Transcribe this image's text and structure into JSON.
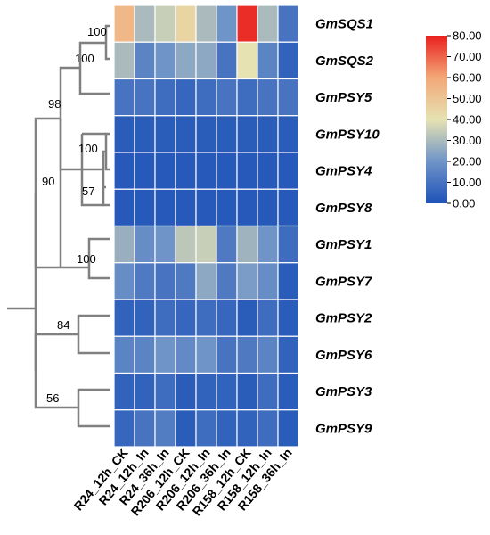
{
  "chart_data": {
    "type": "heatmap",
    "title": "",
    "rows": [
      "GmSQS1",
      "GmSQS2",
      "GmPSY5",
      "GmPSY10",
      "GmPSY4",
      "GmPSY8",
      "GmPSY1",
      "GmPSY7",
      "GmPSY2",
      "GmPSY6",
      "GmPSY3",
      "GmPSY9"
    ],
    "columns": [
      "R24_12h_CK",
      "R24_12h_In",
      "R24_36h_In",
      "R206_12h_CK",
      "R206_12h_In",
      "R206_36h_In",
      "R158_12h_CK",
      "R158_12h_In",
      "R158_36h_In"
    ],
    "values": [
      [
        55,
        30,
        35,
        45,
        30,
        20,
        78,
        30,
        10
      ],
      [
        30,
        15,
        20,
        25,
        25,
        10,
        40,
        15,
        5
      ],
      [
        10,
        10,
        8,
        6,
        8,
        10,
        8,
        10,
        10
      ],
      [
        3,
        3,
        3,
        3,
        3,
        3,
        3,
        3,
        3
      ],
      [
        2,
        2,
        2,
        2,
        2,
        2,
        2,
        2,
        2
      ],
      [
        2,
        2,
        2,
        2,
        2,
        2,
        2,
        2,
        2
      ],
      [
        27,
        18,
        20,
        33,
        35,
        12,
        28,
        20,
        8
      ],
      [
        18,
        12,
        10,
        12,
        25,
        12,
        22,
        18,
        3
      ],
      [
        5,
        5,
        8,
        6,
        8,
        6,
        3,
        8,
        3
      ],
      [
        15,
        15,
        20,
        17,
        20,
        10,
        12,
        15,
        5
      ],
      [
        5,
        5,
        8,
        3,
        5,
        5,
        3,
        8,
        3
      ],
      [
        6,
        10,
        13,
        3,
        8,
        5,
        5,
        8,
        3
      ]
    ],
    "color_scale": {
      "min": 0,
      "max": 80,
      "stops": [
        "#1e52b8",
        "#6f94c8",
        "#e6e2b2",
        "#f3a878",
        "#ea1f1e"
      ],
      "ticks": [
        "0.00",
        "10.00",
        "20.00",
        "30.00",
        "40.00",
        "50.00",
        "60.00",
        "70.00",
        "80.00"
      ]
    },
    "tree_bootstrap": [
      "100",
      "100",
      "98",
      "100",
      "57",
      "90",
      "100",
      "84",
      "56"
    ],
    "legend_position": "top-right"
  }
}
